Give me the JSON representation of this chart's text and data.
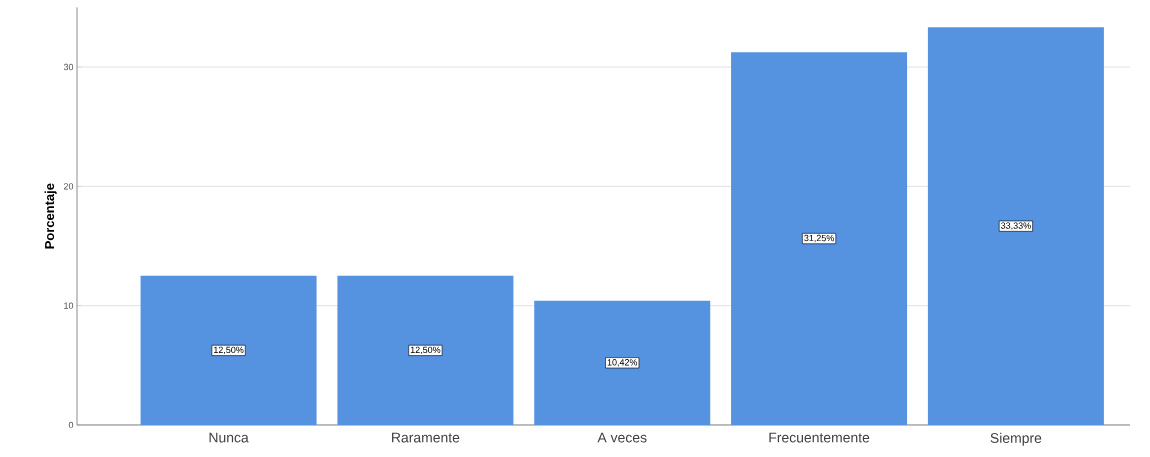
{
  "chart_data": {
    "type": "bar",
    "ylabel": "Porcentaje",
    "categories": [
      "Nunca",
      "Raramente",
      "A veces",
      "Frecuentemente",
      "Siempre"
    ],
    "values": [
      12.5,
      12.5,
      10.42,
      31.25,
      33.33
    ],
    "value_labels": [
      "12,50%",
      "12,50%",
      "10,42%",
      "31,25%",
      "33,33%"
    ],
    "color": "#5592e0",
    "ylim": [
      0,
      35
    ],
    "yticks": [
      0,
      10,
      20,
      30
    ],
    "grid": "y"
  }
}
